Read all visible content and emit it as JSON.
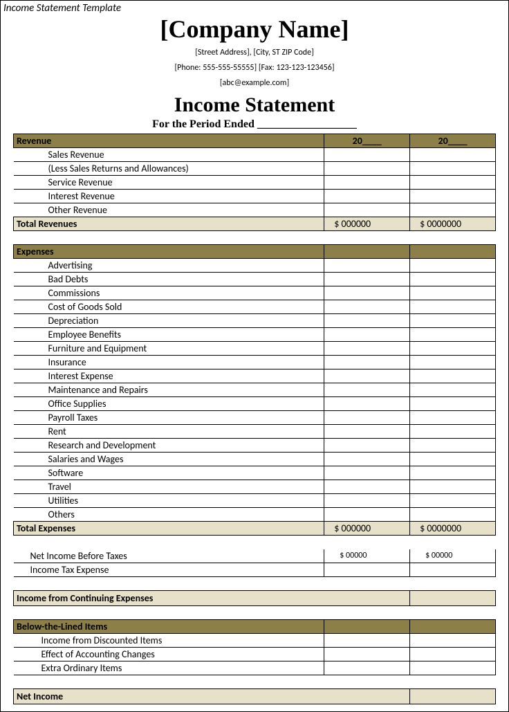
{
  "tag": "Income Statement Template",
  "header": {
    "company": "[Company Name]",
    "street": "[Street Address], [City, ST ZIP Code]",
    "phone": "[Phone: 555-555-55555] [Fax: 123-123-123456]",
    "email": "[abc@example.com]",
    "title": "Income Statement",
    "period": "For the Period Ended __________________"
  },
  "colors": {
    "olive": "#8c8048",
    "beige": "#e7e1c9",
    "border": "#000000",
    "bg": "#ffffff"
  },
  "yearHeader": {
    "y1": "20____",
    "y2": "20____"
  },
  "revenue": {
    "header": "Revenue",
    "items": [
      "Sales Revenue",
      "(Less Sales Returns and Allowances)",
      "Service Revenue",
      "Interest Revenue",
      "Other Revenue"
    ],
    "totalLabel": "Total Revenues",
    "totalV1": "$      000000",
    "totalV2": "$     0000000"
  },
  "expenses": {
    "header": "Expenses",
    "items": [
      "Advertising",
      "Bad Debts",
      "Commissions",
      "Cost of Goods Sold",
      "Depreciation",
      "Employee Benefits",
      "Furniture and Equipment",
      "Insurance",
      "Interest Expense",
      "Maintenance and Repairs",
      "Office Supplies",
      "Payroll Taxes",
      "Rent",
      "Research and Development",
      "Salaries and Wages",
      "Software",
      "Travel",
      "Utilities",
      "Others"
    ],
    "totalLabel": "Total Expenses",
    "totalV1": "$      000000",
    "totalV2": "$     0000000"
  },
  "netBefore": {
    "label": "Net Income Before Taxes",
    "v1": "$          00000",
    "v2": "$         00000",
    "taxLabel": "Income Tax Expense"
  },
  "continuing": "Income from Continuing  Expenses",
  "below": {
    "header": "Below-the-Lined Items",
    "items": [
      "Income from Discounted Items",
      "Effect of Accounting Changes",
      "Extra Ordinary Items"
    ]
  },
  "netIncome": "Net Income"
}
